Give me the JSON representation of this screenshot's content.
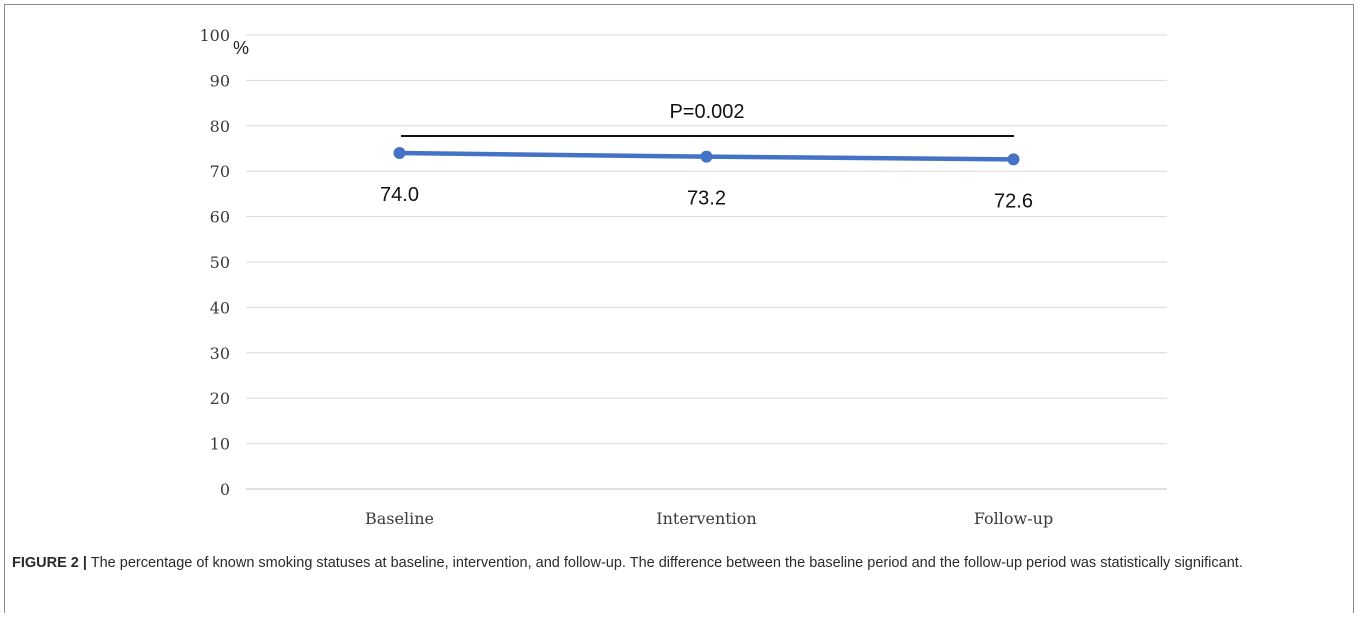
{
  "chart_data": {
    "type": "line",
    "categories": [
      "Baseline",
      "Intervention",
      "Follow-up"
    ],
    "values": [
      74.0,
      73.2,
      72.6
    ],
    "data_labels": [
      "74.0",
      "73.2",
      "72.6"
    ],
    "yticks": [
      "0",
      "10",
      "20",
      "30",
      "40",
      "50",
      "60",
      "70",
      "80",
      "90",
      "100"
    ],
    "ylim": [
      0,
      100
    ],
    "y_unit": "%",
    "annotation": "P=0.002",
    "line_color": "#4472c4",
    "grid": true
  },
  "caption": {
    "label": "FIGURE 2 |",
    "text": "The percentage of known smoking statuses at baseline, intervention, and follow-up. The difference between the baseline period and the follow-up period was statistically significant."
  }
}
